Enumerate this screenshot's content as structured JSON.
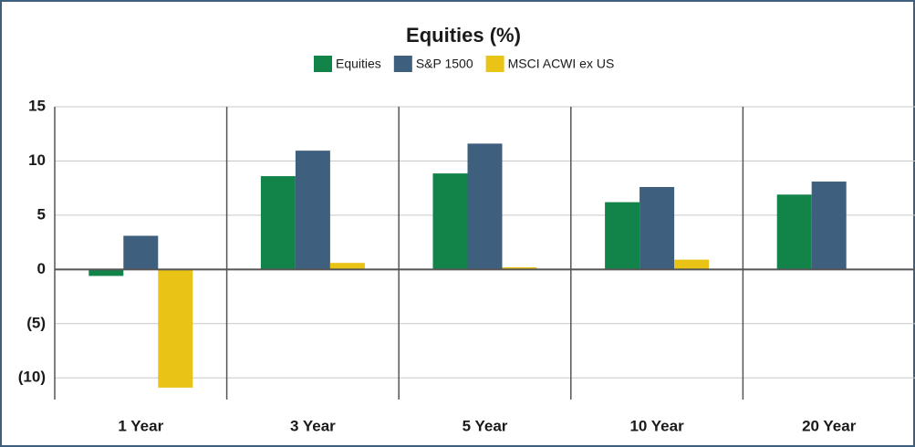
{
  "chart_data": {
    "type": "bar",
    "title": "Equities (%)",
    "categories": [
      "1 Year",
      "3 Year",
      "5 Year",
      "10 Year",
      "20 Year"
    ],
    "series": [
      {
        "name": "Equities",
        "color": "#12844a",
        "values": [
          -0.6,
          8.6,
          8.85,
          6.2,
          6.9
        ]
      },
      {
        "name": "S&P 1500",
        "color": "#3e5f7e",
        "values": [
          3.1,
          10.95,
          11.6,
          7.6,
          8.1
        ]
      },
      {
        "name": "MSCI ACWI ex US",
        "color": "#e9c315",
        "values": [
          -10.9,
          0.6,
          0.2,
          0.9,
          null
        ]
      }
    ],
    "ylim": [
      -12,
      15
    ],
    "yticks": [
      15,
      10,
      5,
      0,
      {
        "value": -5,
        "label": "(5)"
      },
      {
        "value": -10,
        "label": "(10)"
      }
    ],
    "grid": true
  }
}
